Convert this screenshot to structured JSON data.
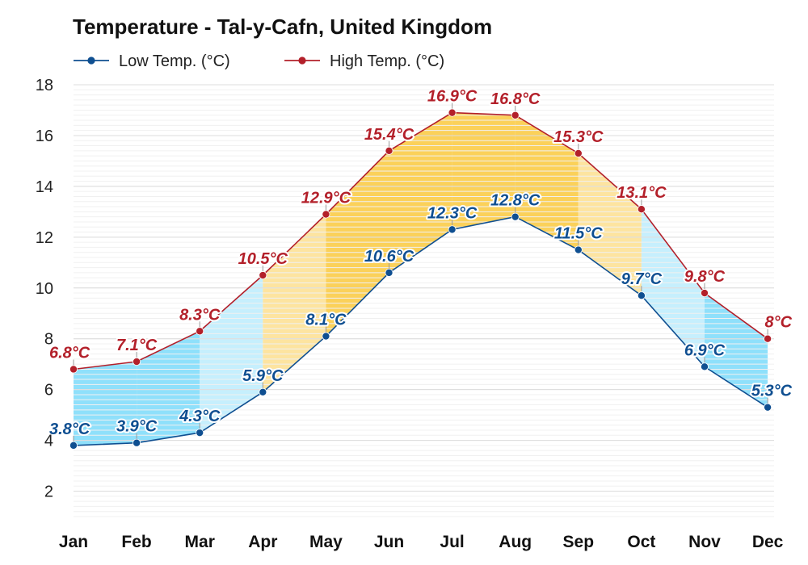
{
  "chart_data": {
    "type": "line",
    "title": "Temperature - Tal-y-Cafn, United Kingdom",
    "xlabel": "",
    "ylabel": "",
    "categories": [
      "Jan",
      "Feb",
      "Mar",
      "Apr",
      "May",
      "Jun",
      "Jul",
      "Aug",
      "Sep",
      "Oct",
      "Nov",
      "Dec"
    ],
    "ylim": [
      1,
      18
    ],
    "yticks": [
      "2",
      "4",
      "6",
      "8",
      "10",
      "12",
      "14",
      "16",
      "18"
    ],
    "grid": true,
    "legend": "top-left",
    "series": [
      {
        "name": "Low Temp. (°C)",
        "color": "#0f4f91",
        "values": [
          3.8,
          3.9,
          4.3,
          5.9,
          8.1,
          10.6,
          12.3,
          12.8,
          11.5,
          9.7,
          6.9,
          5.3
        ],
        "labels": [
          "3.8°C",
          "3.9°C",
          "4.3°C",
          "5.9°C",
          "8.1°C",
          "10.6°C",
          "12.3°C",
          "12.8°C",
          "11.5°C",
          "9.7°C",
          "6.9°C",
          "5.3°C"
        ]
      },
      {
        "name": "High Temp. (°C)",
        "color": "#b3202a",
        "values": [
          6.8,
          7.1,
          8.3,
          10.5,
          12.9,
          15.4,
          16.9,
          16.8,
          15.3,
          13.1,
          9.8,
          8.0
        ],
        "labels": [
          "6.8°C",
          "7.1°C",
          "8.3°C",
          "10.5°C",
          "12.9°C",
          "15.4°C",
          "16.9°C",
          "16.8°C",
          "15.3°C",
          "13.1°C",
          "9.8°C",
          "8°C"
        ]
      }
    ],
    "band_colors": {
      "cool_dark": "#8fe0fb",
      "cool_light": "#c6effd",
      "warm_light": "#fde4a0",
      "warm_dark": "#fbd15a"
    },
    "month_band_style": [
      "cool_dark",
      "cool_dark",
      "cool_light",
      "warm_light",
      "warm_dark",
      "warm_dark",
      "warm_dark",
      "warm_dark",
      "warm_light",
      "cool_light",
      "cool_dark",
      "cool_dark"
    ]
  }
}
